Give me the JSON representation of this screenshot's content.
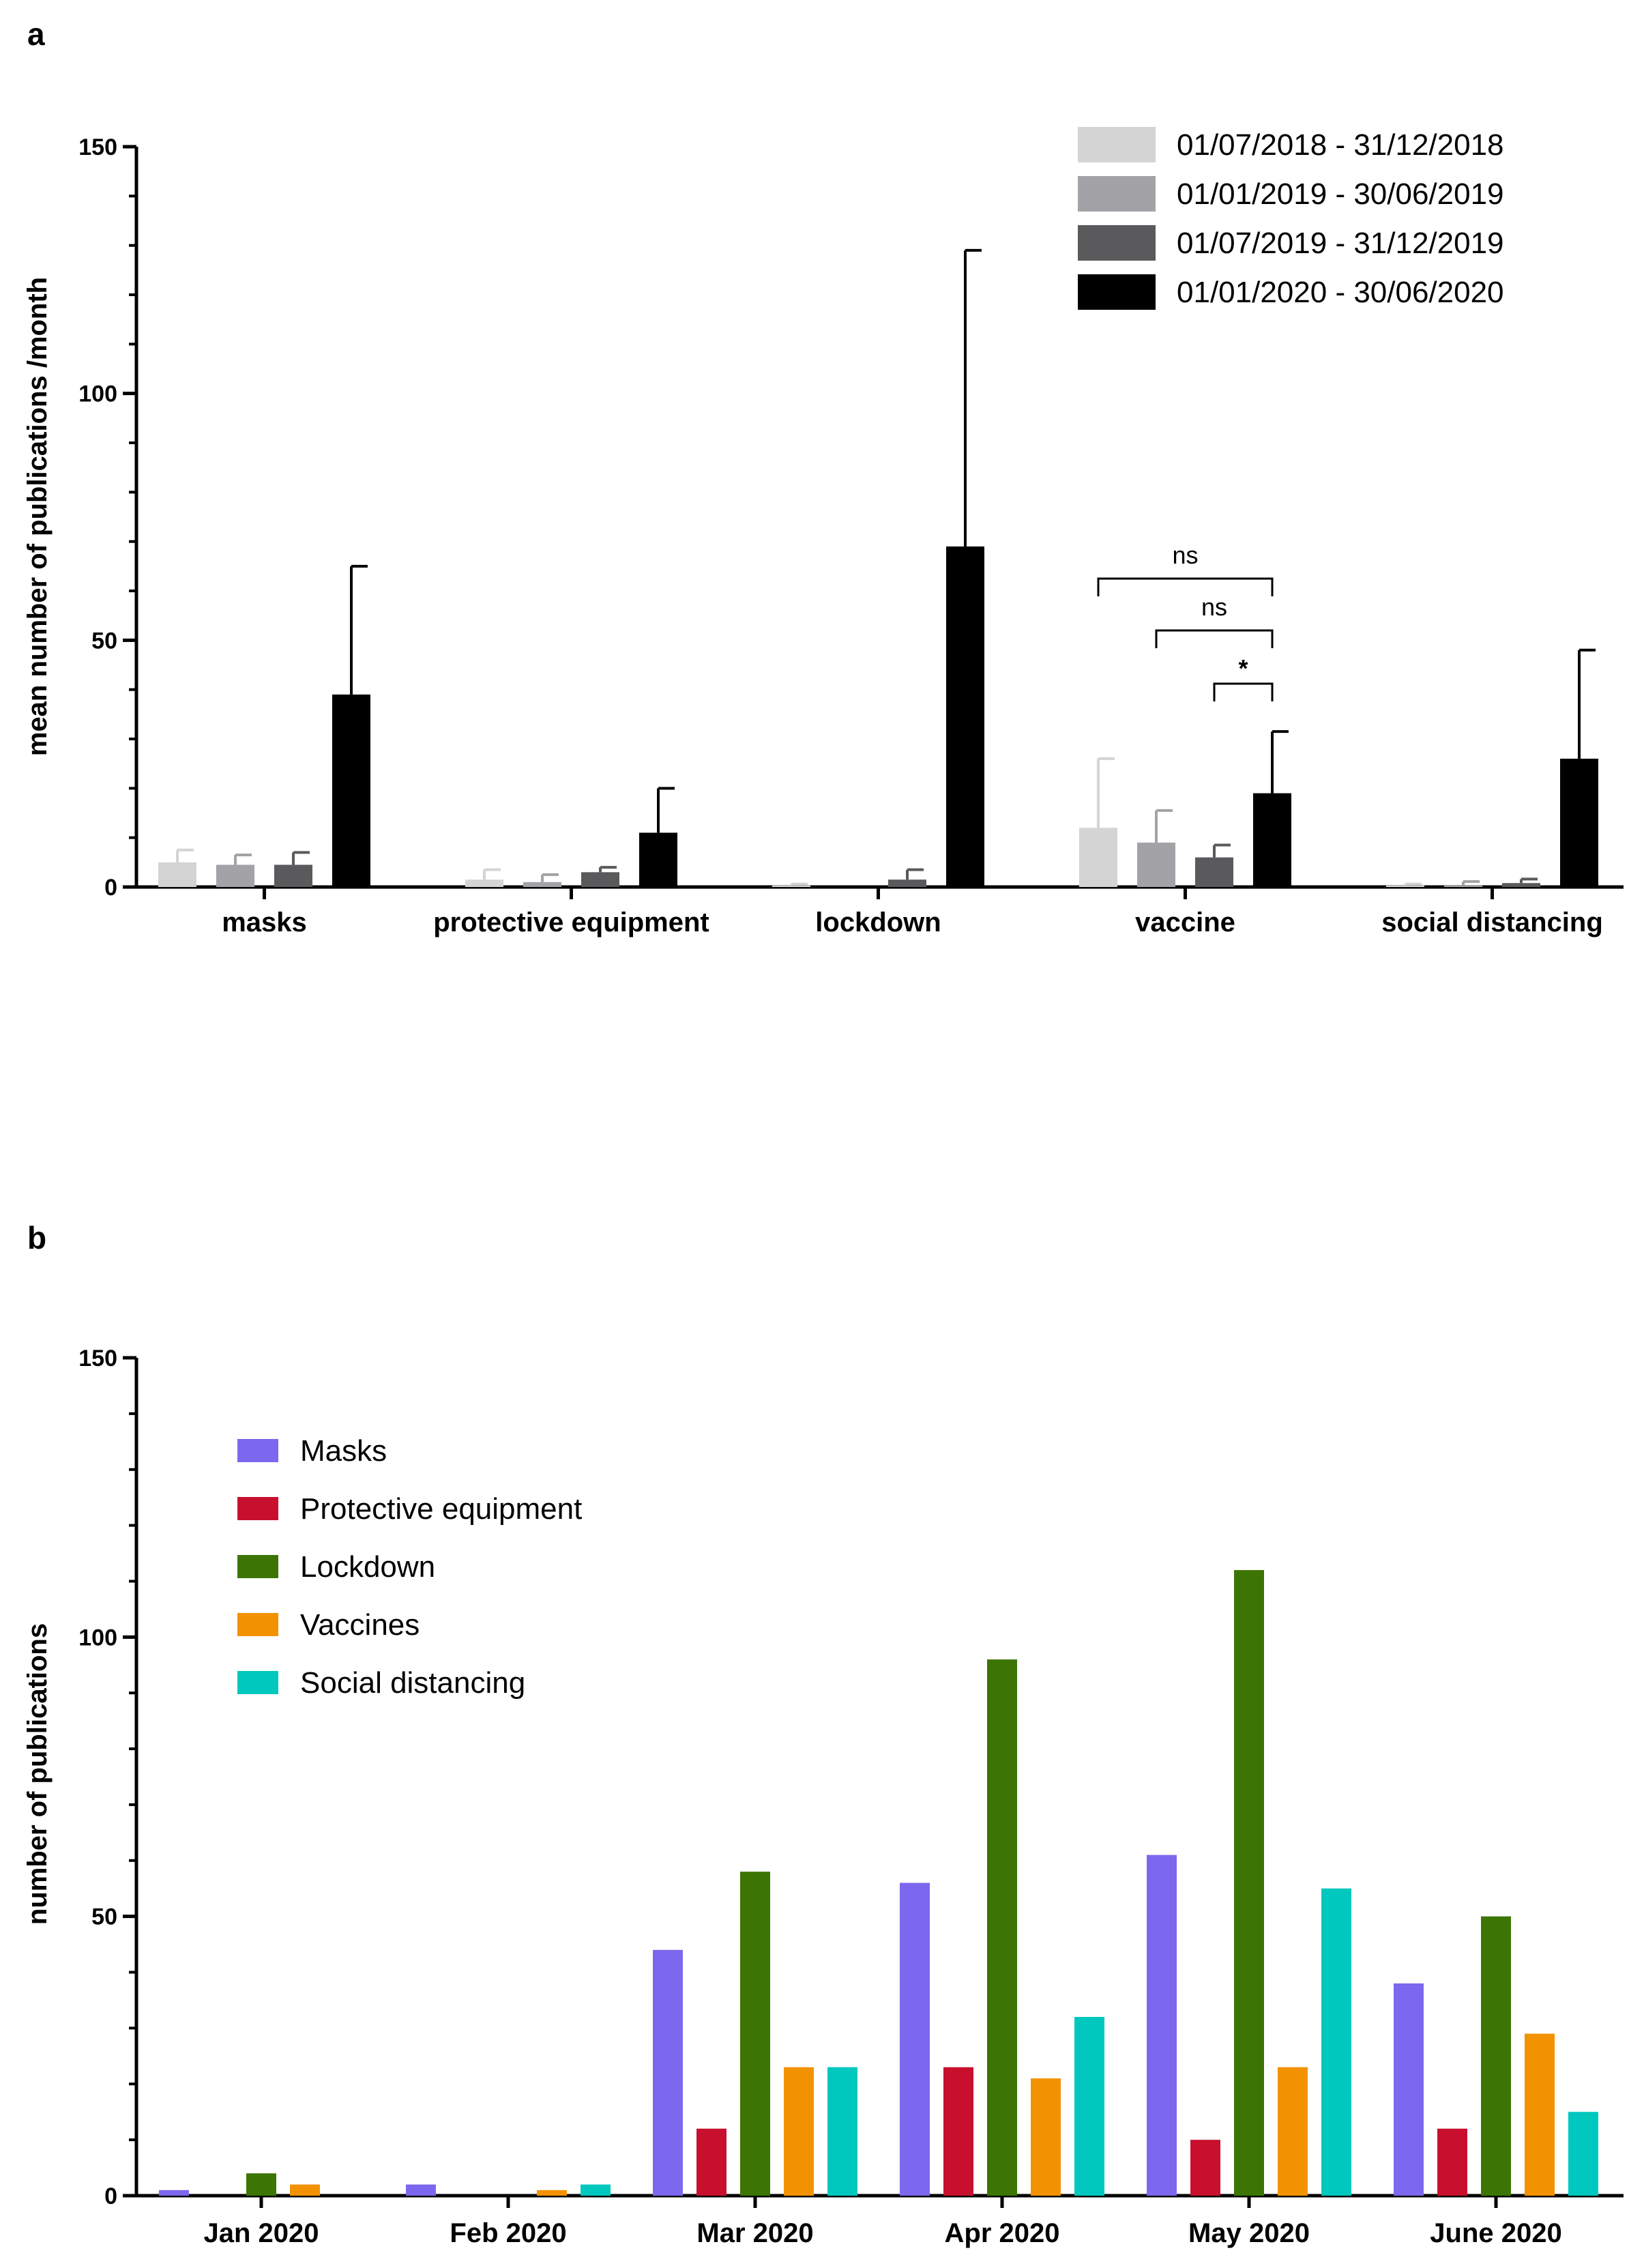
{
  "chart_data": [
    {
      "panel": "a",
      "type": "bar",
      "ylabel": "mean number of publications /month",
      "xlabel": "",
      "ylim": [
        0,
        150
      ],
      "yticks": [
        0,
        50,
        100,
        150
      ],
      "categories": [
        "masks",
        "protective equipment",
        "lockdown",
        "vaccine",
        "social distancing"
      ],
      "series": [
        {
          "name": "01/07/2018 - 31/12/2018",
          "color": "#d4d4d4",
          "values": [
            5,
            1.5,
            0.3,
            12,
            0.3
          ],
          "errors": [
            2.5,
            2,
            0.3,
            14,
            0.3
          ]
        },
        {
          "name": "01/01/2019 - 30/06/2019",
          "color": "#a3a3a7",
          "values": [
            4.5,
            1,
            0,
            9,
            0.3
          ],
          "errors": [
            2,
            1.5,
            0,
            6.5,
            0.8
          ]
        },
        {
          "name": "01/07/2019 - 31/12/2019",
          "color": "#5a5a5c",
          "values": [
            4.5,
            3,
            1.5,
            6,
            0.8
          ],
          "errors": [
            2.5,
            1,
            2,
            2.5,
            0.8
          ]
        },
        {
          "name": "01/01/2020 - 30/06/2020",
          "color": "#000000",
          "values": [
            39,
            11,
            69,
            19,
            26
          ],
          "errors": [
            26,
            9,
            60,
            12.5,
            22
          ]
        }
      ],
      "annotations": [
        {
          "category": "vaccine",
          "from_series": 0,
          "to_series": 3,
          "label": "ns"
        },
        {
          "category": "vaccine",
          "from_series": 1,
          "to_series": 3,
          "label": "ns"
        },
        {
          "category": "vaccine",
          "from_series": 2,
          "to_series": 3,
          "label": "*"
        }
      ]
    },
    {
      "panel": "b",
      "type": "bar",
      "ylabel": "number of publications",
      "xlabel": "",
      "ylim": [
        0,
        150
      ],
      "yticks": [
        0,
        50,
        100,
        150
      ],
      "categories": [
        "Jan 2020",
        "Feb 2020",
        "Mar 2020",
        "Apr 2020",
        "May 2020",
        "June 2020"
      ],
      "series": [
        {
          "name": "Masks",
          "color": "#7b68ee",
          "values": [
            1,
            2,
            44,
            56,
            61,
            38
          ]
        },
        {
          "name": "Protective equipment",
          "color": "#c8102e",
          "values": [
            0,
            0,
            12,
            23,
            10,
            12
          ]
        },
        {
          "name": "Lockdown",
          "color": "#3d7504",
          "values": [
            4,
            0,
            58,
            96,
            112,
            50
          ]
        },
        {
          "name": "Vaccines",
          "color": "#f39200",
          "values": [
            2,
            1,
            23,
            21,
            23,
            29
          ]
        },
        {
          "name": "Social distancing",
          "color": "#00c8be",
          "values": [
            0,
            2,
            23,
            32,
            55,
            15
          ]
        }
      ]
    }
  ]
}
